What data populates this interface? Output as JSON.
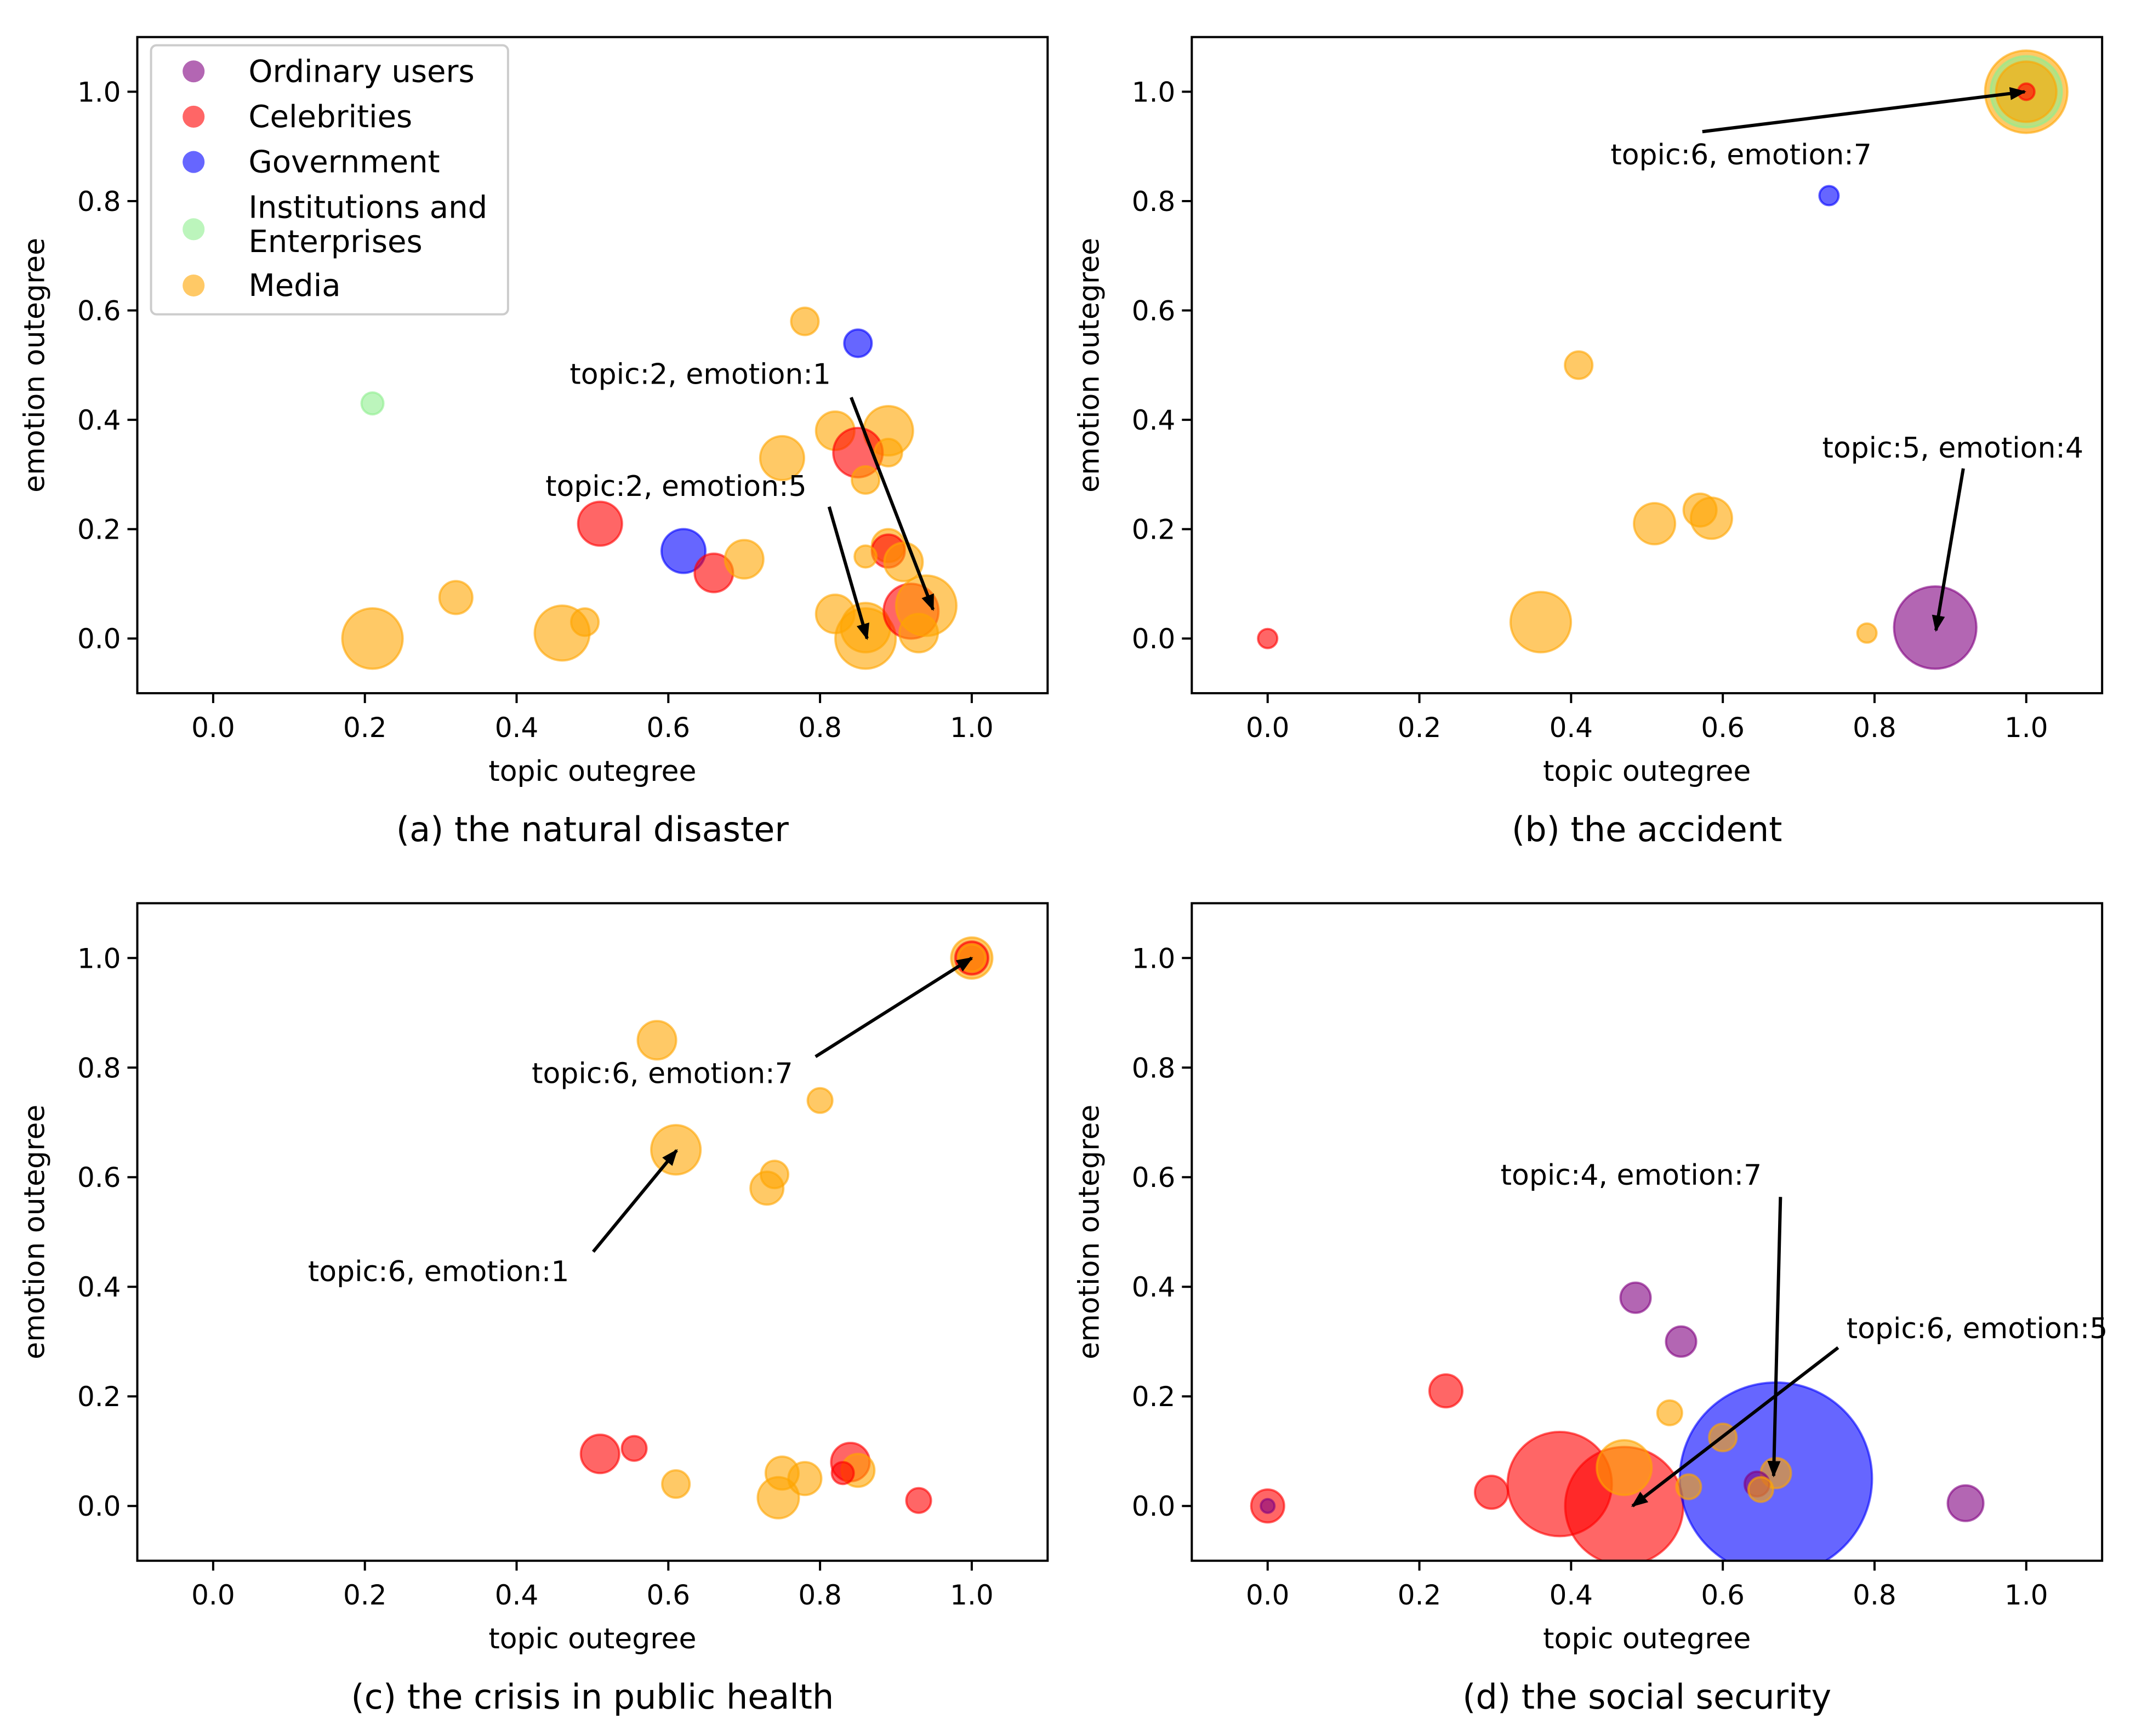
{
  "legend": {
    "placement": "upper-left of panel (a)",
    "entries": [
      {
        "key": "ordinary",
        "label": "Ordinary users",
        "color": "#800080"
      },
      {
        "key": "celebrity",
        "label": "Celebrities",
        "color": "#ff0000"
      },
      {
        "key": "government",
        "label": "Government",
        "color": "#0000ff"
      },
      {
        "key": "institution",
        "label": "Institutions and\nEnterprises",
        "color": "#90ee90"
      },
      {
        "key": "media",
        "label": "Media",
        "color": "#ffa500"
      }
    ]
  },
  "chart_data": [
    {
      "type": "scatter",
      "title": "(a) the natural disaster",
      "xlabel": "topic outegree",
      "ylabel": "emotion outegree",
      "xlim": [
        -0.1,
        1.1
      ],
      "ylim": [
        -0.1,
        1.1
      ],
      "xticks": [
        "0.0",
        "0.2",
        "0.4",
        "0.6",
        "0.8",
        "1.0"
      ],
      "yticks": [
        "0.0",
        "0.2",
        "0.4",
        "0.6",
        "0.8",
        "1.0"
      ],
      "points": [
        {
          "g": "institution",
          "x": 0.21,
          "y": 0.43,
          "size": 8
        },
        {
          "g": "media",
          "x": 0.21,
          "y": 0.0,
          "size": 22
        },
        {
          "g": "media",
          "x": 0.32,
          "y": 0.075,
          "size": 12
        },
        {
          "g": "media",
          "x": 0.46,
          "y": 0.01,
          "size": 20
        },
        {
          "g": "media",
          "x": 0.49,
          "y": 0.03,
          "size": 10
        },
        {
          "g": "celebrity",
          "x": 0.51,
          "y": 0.21,
          "size": 16
        },
        {
          "g": "government",
          "x": 0.62,
          "y": 0.16,
          "size": 16
        },
        {
          "g": "celebrity",
          "x": 0.66,
          "y": 0.12,
          "size": 14
        },
        {
          "g": "media",
          "x": 0.7,
          "y": 0.145,
          "size": 14
        },
        {
          "g": "media",
          "x": 0.75,
          "y": 0.33,
          "size": 16
        },
        {
          "g": "media",
          "x": 0.78,
          "y": 0.58,
          "size": 10
        },
        {
          "g": "government",
          "x": 0.85,
          "y": 0.54,
          "size": 10
        },
        {
          "g": "media",
          "x": 0.82,
          "y": 0.38,
          "size": 14
        },
        {
          "g": "media",
          "x": 0.89,
          "y": 0.38,
          "size": 18
        },
        {
          "g": "celebrity",
          "x": 0.85,
          "y": 0.34,
          "size": 18
        },
        {
          "g": "media",
          "x": 0.89,
          "y": 0.34,
          "size": 10
        },
        {
          "g": "media",
          "x": 0.86,
          "y": 0.29,
          "size": 10
        },
        {
          "g": "media",
          "x": 0.89,
          "y": 0.17,
          "size": 12
        },
        {
          "g": "celebrity",
          "x": 0.89,
          "y": 0.16,
          "size": 12
        },
        {
          "g": "media",
          "x": 0.91,
          "y": 0.14,
          "size": 14
        },
        {
          "g": "media",
          "x": 0.86,
          "y": 0.15,
          "size": 8
        },
        {
          "g": "media",
          "x": 0.82,
          "y": 0.045,
          "size": 14
        },
        {
          "g": "media",
          "x": 0.86,
          "y": 0.0,
          "size": 22
        },
        {
          "g": "media",
          "x": 0.86,
          "y": 0.02,
          "size": 18
        },
        {
          "g": "celebrity",
          "x": 0.92,
          "y": 0.05,
          "size": 20
        },
        {
          "g": "media",
          "x": 0.94,
          "y": 0.06,
          "size": 22
        },
        {
          "g": "media",
          "x": 0.93,
          "y": 0.01,
          "size": 14
        }
      ],
      "annotations": [
        {
          "text": "topic:2, emotion:1",
          "xy": [
            0.949,
            0.053
          ],
          "xytext": [
            0.47,
            0.466
          ],
          "tail": [
            0.841,
            0.441
          ]
        },
        {
          "text": "topic:2, emotion:5",
          "xy": [
            0.862,
            0.0
          ],
          "xytext": [
            0.438,
            0.261
          ],
          "tail": [
            0.812,
            0.241
          ]
        }
      ]
    },
    {
      "type": "scatter",
      "title": "(b) the accident",
      "xlabel": "topic outegree",
      "ylabel": "emotion outegree",
      "xlim": [
        -0.1,
        1.1
      ],
      "ylim": [
        -0.1,
        1.1
      ],
      "xticks": [
        "0.0",
        "0.2",
        "0.4",
        "0.6",
        "0.8",
        "1.0"
      ],
      "yticks": [
        "0.0",
        "0.2",
        "0.4",
        "0.6",
        "0.8",
        "1.0"
      ],
      "points": [
        {
          "g": "celebrity",
          "x": 0.0,
          "y": 0.0,
          "size": 7
        },
        {
          "g": "media",
          "x": 0.36,
          "y": 0.03,
          "size": 22
        },
        {
          "g": "media",
          "x": 0.41,
          "y": 0.5,
          "size": 10
        },
        {
          "g": "media",
          "x": 0.51,
          "y": 0.21,
          "size": 15
        },
        {
          "g": "media",
          "x": 0.57,
          "y": 0.235,
          "size": 12
        },
        {
          "g": "media",
          "x": 0.585,
          "y": 0.22,
          "size": 15
        },
        {
          "g": "media",
          "x": 0.79,
          "y": 0.01,
          "size": 7
        },
        {
          "g": "ordinary",
          "x": 0.88,
          "y": 0.02,
          "size": 30
        },
        {
          "g": "government",
          "x": 0.74,
          "y": 0.81,
          "size": 7
        },
        {
          "g": "media",
          "x": 1.0,
          "y": 1.0,
          "size": 30
        },
        {
          "g": "institution",
          "x": 1.0,
          "y": 1.0,
          "size": 26
        },
        {
          "g": "media",
          "x": 1.0,
          "y": 1.0,
          "size": 22
        },
        {
          "g": "celebrity",
          "x": 1.0,
          "y": 1.0,
          "size": 6
        }
      ],
      "annotations": [
        {
          "text": "topic:6, emotion:7",
          "xy": [
            0.998,
            1.0
          ],
          "xytext": [
            0.452,
            0.867
          ],
          "tail": [
            0.573,
            0.927
          ]
        },
        {
          "text": "topic:5, emotion:4",
          "xy": [
            0.881,
            0.015
          ],
          "xytext": [
            0.731,
            0.331
          ],
          "tail": [
            0.917,
            0.311
          ]
        }
      ]
    },
    {
      "type": "scatter",
      "title": "(c) the crisis in public health",
      "xlabel": "topic outegree",
      "ylabel": "emotion outegree",
      "xlim": [
        -0.1,
        1.1
      ],
      "ylim": [
        -0.1,
        1.1
      ],
      "xticks": [
        "0.0",
        "0.2",
        "0.4",
        "0.6",
        "0.8",
        "1.0"
      ],
      "yticks": [
        "0.0",
        "0.2",
        "0.4",
        "0.6",
        "0.8",
        "1.0"
      ],
      "points": [
        {
          "g": "media",
          "x": 1.0,
          "y": 1.0,
          "size": 15
        },
        {
          "g": "celebrity",
          "x": 1.0,
          "y": 1.0,
          "size": 12
        },
        {
          "g": "media",
          "x": 1.0,
          "y": 1.0,
          "size": 10
        },
        {
          "g": "media",
          "x": 0.585,
          "y": 0.85,
          "size": 14
        },
        {
          "g": "media",
          "x": 0.8,
          "y": 0.74,
          "size": 9
        },
        {
          "g": "media",
          "x": 0.61,
          "y": 0.65,
          "size": 18
        },
        {
          "g": "media",
          "x": 0.74,
          "y": 0.605,
          "size": 10
        },
        {
          "g": "media",
          "x": 0.73,
          "y": 0.58,
          "size": 12
        },
        {
          "g": "celebrity",
          "x": 0.51,
          "y": 0.095,
          "size": 14
        },
        {
          "g": "celebrity",
          "x": 0.555,
          "y": 0.105,
          "size": 9
        },
        {
          "g": "media",
          "x": 0.61,
          "y": 0.04,
          "size": 10
        },
        {
          "g": "media",
          "x": 0.75,
          "y": 0.06,
          "size": 12
        },
        {
          "g": "media",
          "x": 0.745,
          "y": 0.015,
          "size": 15
        },
        {
          "g": "media",
          "x": 0.78,
          "y": 0.05,
          "size": 12
        },
        {
          "g": "celebrity",
          "x": 0.84,
          "y": 0.08,
          "size": 14
        },
        {
          "g": "media",
          "x": 0.85,
          "y": 0.065,
          "size": 12
        },
        {
          "g": "celebrity",
          "x": 0.83,
          "y": 0.06,
          "size": 8
        },
        {
          "g": "celebrity",
          "x": 0.93,
          "y": 0.01,
          "size": 9
        }
      ],
      "annotations": [
        {
          "text": "topic:6, emotion:7",
          "xy": [
            1.0,
            1.0
          ],
          "xytext": [
            0.42,
            0.772
          ],
          "tail": [
            0.794,
            0.82
          ]
        },
        {
          "text": "topic:6, emotion:1",
          "xy": [
            0.611,
            0.649
          ],
          "xytext": [
            0.125,
            0.41
          ],
          "tail": [
            0.501,
            0.464
          ]
        }
      ]
    },
    {
      "type": "scatter",
      "title": "(d) the social security",
      "xlabel": "topic outegree",
      "ylabel": "emotion outegree",
      "xlim": [
        -0.1,
        1.1
      ],
      "ylim": [
        -0.1,
        1.1
      ],
      "xticks": [
        "0.0",
        "0.2",
        "0.4",
        "0.6",
        "0.8",
        "1.0"
      ],
      "yticks": [
        "0.0",
        "0.2",
        "0.4",
        "0.6",
        "0.8",
        "1.0"
      ],
      "points": [
        {
          "g": "celebrity",
          "x": 0.0,
          "y": 0.0,
          "size": 12
        },
        {
          "g": "ordinary",
          "x": 0.0,
          "y": 0.0,
          "size": 5
        },
        {
          "g": "celebrity",
          "x": 0.235,
          "y": 0.21,
          "size": 12
        },
        {
          "g": "celebrity",
          "x": 0.295,
          "y": 0.025,
          "size": 12
        },
        {
          "g": "celebrity",
          "x": 0.385,
          "y": 0.04,
          "size": 38
        },
        {
          "g": "celebrity",
          "x": 0.47,
          "y": 0.0,
          "size": 43
        },
        {
          "g": "media",
          "x": 0.47,
          "y": 0.07,
          "size": 20
        },
        {
          "g": "media",
          "x": 0.53,
          "y": 0.17,
          "size": 9
        },
        {
          "g": "ordinary",
          "x": 0.485,
          "y": 0.38,
          "size": 11
        },
        {
          "g": "ordinary",
          "x": 0.545,
          "y": 0.3,
          "size": 11
        },
        {
          "g": "government",
          "x": 0.67,
          "y": 0.05,
          "size": 70
        },
        {
          "g": "media",
          "x": 0.6,
          "y": 0.125,
          "size": 10
        },
        {
          "g": "media",
          "x": 0.67,
          "y": 0.06,
          "size": 11
        },
        {
          "g": "ordinary",
          "x": 0.645,
          "y": 0.04,
          "size": 9
        },
        {
          "g": "media",
          "x": 0.65,
          "y": 0.03,
          "size": 9
        },
        {
          "g": "media",
          "x": 0.555,
          "y": 0.035,
          "size": 9
        },
        {
          "g": "ordinary",
          "x": 0.92,
          "y": 0.005,
          "size": 13
        }
      ],
      "annotations": [
        {
          "text": "topic:4, emotion:7",
          "xy": [
            0.667,
            0.055
          ],
          "xytext": [
            0.307,
            0.586
          ],
          "tail": [
            0.676,
            0.564
          ]
        },
        {
          "text": "topic:6, emotion:5",
          "xy": [
            0.481,
            0.0
          ],
          "xytext": [
            0.763,
            0.306
          ],
          "tail": [
            0.752,
            0.289
          ]
        }
      ]
    }
  ]
}
